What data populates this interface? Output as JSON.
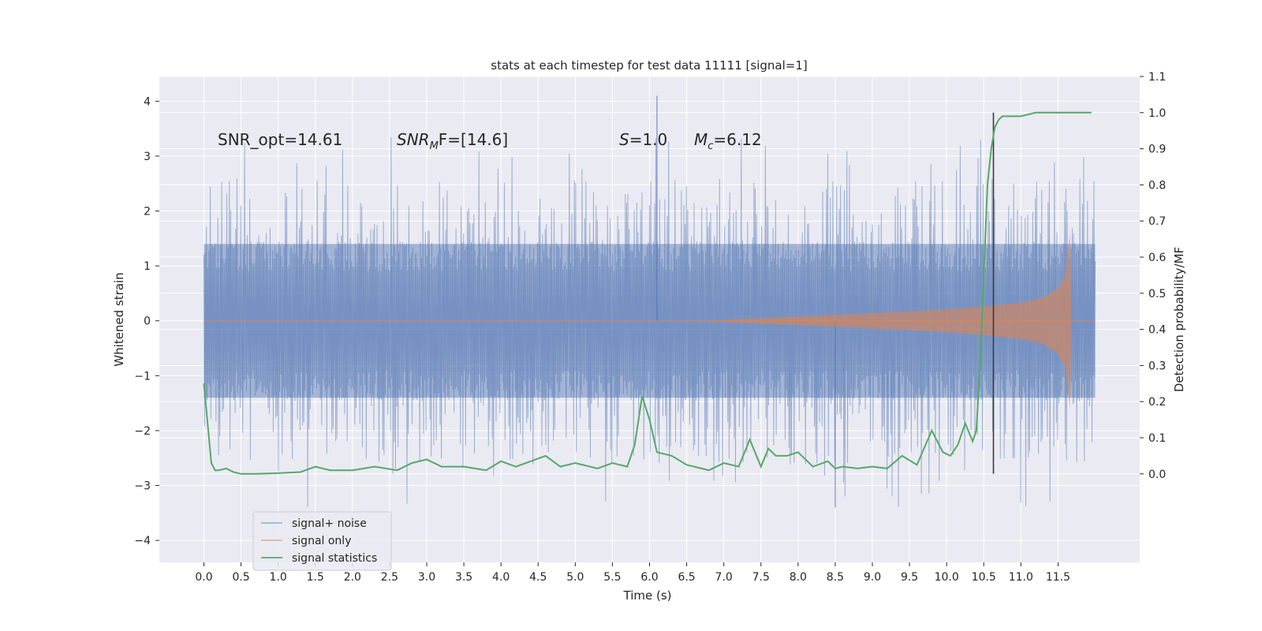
{
  "chart_data": {
    "type": "line",
    "title": "stats at each timestep for test data 11111 [signal=1]",
    "xlabel": "Time (s)",
    "ylabel": "Whitened strain",
    "ylabel_right": "Detection probability/MF",
    "xlim": [
      -0.6,
      12.6
    ],
    "ylim": [
      -4.4,
      4.45
    ],
    "ylim_right": [
      -0.245,
      1.1
    ],
    "x_ticks": [
      0.0,
      0.5,
      1.0,
      1.5,
      2.0,
      2.5,
      3.0,
      3.5,
      4.0,
      4.5,
      5.0,
      5.5,
      6.0,
      6.5,
      7.0,
      7.5,
      8.0,
      8.5,
      9.0,
      9.5,
      10.0,
      10.5,
      11.0,
      11.5
    ],
    "x_tick_labels": [
      "0.0",
      "0.5",
      "1.0",
      "1.5",
      "2.0",
      "2.5",
      "3.0",
      "3.5",
      "4.0",
      "4.5",
      "5.0",
      "5.5",
      "6.0",
      "6.5",
      "7.0",
      "7.5",
      "8.0",
      "8.5",
      "9.0",
      "9.5",
      "10.0",
      "10.5",
      "11.0",
      "11.5"
    ],
    "y_ticks": [
      -4,
      -3,
      -2,
      -1,
      0,
      1,
      2,
      3,
      4
    ],
    "y_tick_labels": [
      "−4",
      "−3",
      "−2",
      "−1",
      "0",
      "1",
      "2",
      "3",
      "4"
    ],
    "y_ticks_right": [
      0.0,
      0.1,
      0.2,
      0.3,
      0.4,
      0.5,
      0.6,
      0.7,
      0.8,
      0.9,
      1.0,
      1.1
    ],
    "y_tick_labels_right": [
      "0.0",
      "0.1",
      "0.2",
      "0.3",
      "0.4",
      "0.5",
      "0.6",
      "0.7",
      "0.8",
      "0.9",
      "1.0",
      "1.1"
    ],
    "grid": true,
    "legend_position": "lower-left",
    "annotations": {
      "snr_opt": "SNR_opt=14.61",
      "snr_mf_symbol": "SNR",
      "snr_mf_sub": "M",
      "snr_mf_rest": "F=[14.6]",
      "s_symbol": "S",
      "s_rest": "=1.0",
      "mc_symbol": "M",
      "mc_sub": "c",
      "mc_rest": "=6.12"
    },
    "vline_x": 10.63,
    "series": [
      {
        "name": "signal+ noise",
        "color": "#4c72b0",
        "axis": "left",
        "x_range": [
          0.0,
          12.0
        ],
        "band_low": -1.4,
        "band_high": 1.4,
        "typical_peak": 2.6,
        "max_value": 4.1,
        "min_value": -3.4
      },
      {
        "name": "signal only",
        "color": "#dd8452",
        "axis": "left",
        "envelope_x": [
          0.0,
          6.5,
          7.0,
          7.5,
          8.0,
          8.5,
          9.0,
          9.5,
          10.0,
          10.5,
          11.0,
          11.3,
          11.5,
          11.6,
          11.66,
          11.68,
          11.7,
          12.0
        ],
        "envelope_amp": [
          0.0,
          0.0,
          0.02,
          0.05,
          0.08,
          0.11,
          0.14,
          0.17,
          0.21,
          0.26,
          0.33,
          0.42,
          0.6,
          0.85,
          1.6,
          0.0,
          0.0,
          0.0
        ]
      },
      {
        "name": "signal statistics",
        "color": "#55a868",
        "axis": "right",
        "x": [
          0.0,
          0.05,
          0.1,
          0.15,
          0.2,
          0.3,
          0.4,
          0.5,
          0.7,
          1.0,
          1.3,
          1.5,
          1.7,
          2.0,
          2.3,
          2.6,
          2.8,
          3.0,
          3.2,
          3.5,
          3.8,
          4.0,
          4.2,
          4.4,
          4.6,
          4.8,
          5.0,
          5.3,
          5.5,
          5.7,
          5.8,
          5.9,
          6.0,
          6.1,
          6.3,
          6.5,
          6.8,
          7.0,
          7.2,
          7.35,
          7.5,
          7.6,
          7.7,
          7.85,
          8.0,
          8.2,
          8.4,
          8.5,
          8.6,
          8.8,
          9.0,
          9.2,
          9.4,
          9.6,
          9.8,
          9.95,
          10.05,
          10.15,
          10.25,
          10.35,
          10.4,
          10.45,
          10.5,
          10.55,
          10.6,
          10.65,
          10.7,
          10.75,
          10.85,
          11.0,
          11.2,
          11.4,
          11.6,
          11.8,
          11.95
        ],
        "y": [
          0.25,
          0.14,
          0.03,
          0.01,
          0.01,
          0.015,
          0.005,
          0.0,
          0.0,
          0.002,
          0.005,
          0.02,
          0.01,
          0.01,
          0.02,
          0.01,
          0.03,
          0.04,
          0.02,
          0.02,
          0.01,
          0.035,
          0.02,
          0.035,
          0.05,
          0.02,
          0.03,
          0.015,
          0.03,
          0.02,
          0.08,
          0.215,
          0.15,
          0.06,
          0.05,
          0.025,
          0.01,
          0.03,
          0.02,
          0.095,
          0.02,
          0.07,
          0.05,
          0.05,
          0.06,
          0.02,
          0.035,
          0.015,
          0.02,
          0.015,
          0.02,
          0.015,
          0.05,
          0.025,
          0.12,
          0.06,
          0.05,
          0.08,
          0.14,
          0.09,
          0.12,
          0.3,
          0.55,
          0.8,
          0.9,
          0.96,
          0.98,
          0.99,
          0.99,
          0.99,
          1.0,
          1.0,
          1.0,
          1.0,
          1.0
        ]
      }
    ]
  }
}
